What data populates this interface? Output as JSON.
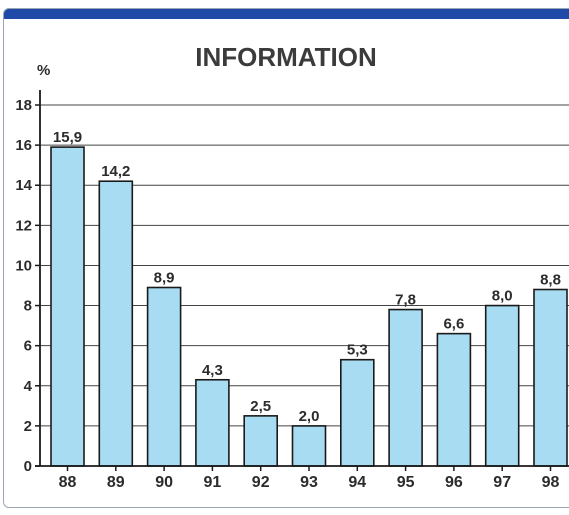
{
  "chart_data": {
    "type": "bar",
    "title": "INFORMATION",
    "ylabel": "%",
    "categories": [
      "88",
      "89",
      "90",
      "91",
      "92",
      "93",
      "94",
      "95",
      "96",
      "97",
      "98"
    ],
    "values": [
      15.9,
      14.2,
      8.9,
      4.3,
      2.5,
      2.0,
      5.3,
      7.8,
      6.6,
      8.0,
      8.8
    ],
    "value_labels": [
      "15,9",
      "14,2",
      "8,9",
      "4,3",
      "2,5",
      "2,0",
      "5,3",
      "7,8",
      "6,6",
      "8,0",
      "8,8"
    ],
    "yticks": [
      "0",
      "2",
      "4",
      "6",
      "8",
      "10",
      "12",
      "14",
      "16",
      "18"
    ],
    "ylim": [
      0,
      18
    ],
    "grid": true,
    "legend": "none"
  },
  "colors": {
    "bar_fill": "#a7dcf3",
    "bar_stroke": "#1a1a1a",
    "grid": "#444444",
    "axis": "#1a1a1a",
    "header_bar": "#1f4aa8",
    "frame": "#9aa6b4"
  }
}
